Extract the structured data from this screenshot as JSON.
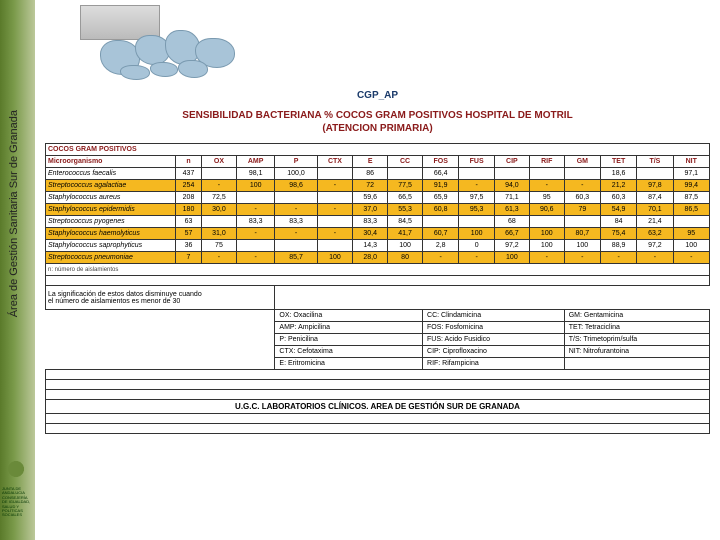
{
  "sidebar": {
    "label": "Área de Gestión Sanitaria Sur de Granada"
  },
  "logo": {
    "org": "JUNTA DE ANDALUCIA",
    "dept": "CONSEJERÍA DE IGUALDAD, SALUD Y POLÍTICAS SOCIALES"
  },
  "header": {
    "code": "CGP_AP",
    "title1": "SENSIBILIDAD BACTERIANA % COCOS GRAM POSITIVOS HOSPITAL DE MOTRIL",
    "title2": "(ATENCION PRIMARIA)"
  },
  "table": {
    "section": "COCOS GRAM POSITIVOS",
    "columns": [
      "Microorganismo",
      "n",
      "OX",
      "AMP",
      "P",
      "CTX",
      "E",
      "CC",
      "FOS",
      "FUS",
      "CIP",
      "RIF",
      "GM",
      "TET",
      "T/S",
      "NIT"
    ],
    "rows": [
      {
        "alt": false,
        "c": [
          "Enterococcus faecalis",
          "437",
          "",
          "98,1",
          "100,0",
          "",
          "86",
          "",
          "66,4",
          "",
          "",
          "",
          "",
          "18,6",
          "",
          "97,1"
        ]
      },
      {
        "alt": true,
        "c": [
          "Streptococcus agalactiae",
          "254",
          "-",
          "100",
          "98,6",
          "-",
          "72",
          "77,5",
          "91,9",
          "-",
          "94,0",
          "-",
          "-",
          "21,2",
          "97,8",
          "99,4"
        ]
      },
      {
        "alt": false,
        "c": [
          "Staphylococcus aureus",
          "208",
          "72,5",
          "",
          "",
          "",
          "59,6",
          "66,5",
          "65,9",
          "97,5",
          "71,1",
          "95",
          "60,3",
          "60,3",
          "87,4",
          "87,5"
        ]
      },
      {
        "alt": true,
        "c": [
          "Staphylococcus epidermidis",
          "180",
          "30,0",
          "-",
          "-",
          "-",
          "37,0",
          "55,3",
          "60,8",
          "95,3",
          "61,3",
          "90,6",
          "79",
          "54,9",
          "70,1",
          "86,5"
        ]
      },
      {
        "alt": false,
        "c": [
          "Streptococcus pyogenes",
          "63",
          "",
          "83,3",
          "83,3",
          "",
          "83,3",
          "84,5",
          "",
          "",
          "68",
          "",
          "",
          "84",
          "21,4",
          ""
        ]
      },
      {
        "alt": true,
        "c": [
          "Staphylococcus haemolyticus",
          "57",
          "31,0",
          "-",
          "-",
          "-",
          "30,4",
          "41,7",
          "60,7",
          "100",
          "66,7",
          "100",
          "80,7",
          "75,4",
          "63,2",
          "95"
        ]
      },
      {
        "alt": false,
        "c": [
          "Staphylococcus saprophyticus",
          "36",
          "75",
          "",
          "",
          "",
          "14,3",
          "100",
          "2,8",
          "0",
          "97,2",
          "100",
          "100",
          "88,9",
          "97,2",
          "100"
        ]
      },
      {
        "alt": true,
        "c": [
          "Streptococcus pneumoniae",
          "7",
          "-",
          "-",
          "85,7",
          "100",
          "28,0",
          "80",
          "-",
          "-",
          "100",
          "-",
          "-",
          "-",
          "-",
          "-"
        ]
      }
    ],
    "n_note": "n: número de aislamientos",
    "signif1": "La significación de estos datos disminuye cuando",
    "signif2": "el número de aislamientos es menor de 30",
    "legend": [
      [
        "OX: Oxacilina",
        "CC: Clindamicina",
        "GM: Gentamicina"
      ],
      [
        "AMP: Ampicilina",
        "FOS: Fosfomicina",
        "TET: Tetraciclina"
      ],
      [
        "P: Penicilina",
        "FUS: Acido Fusidico",
        "T/S: Trimetoprim/sulfa"
      ],
      [
        "CTX: Cefotaxima",
        "CIP: Ciprofloxacino",
        "NIT: Nitrofurantoina"
      ],
      [
        "E: Eritromicina",
        "RIF: Rifampicina",
        ""
      ]
    ],
    "footer": "U.G.C. LABORATORIOS CLÍNICOS. AREA DE GESTIÓN SUR DE GRANADA"
  },
  "colors": {
    "alt_bg": "#f5b820",
    "header_text": "#8a1a1a",
    "code_text": "#1a3a6a"
  }
}
